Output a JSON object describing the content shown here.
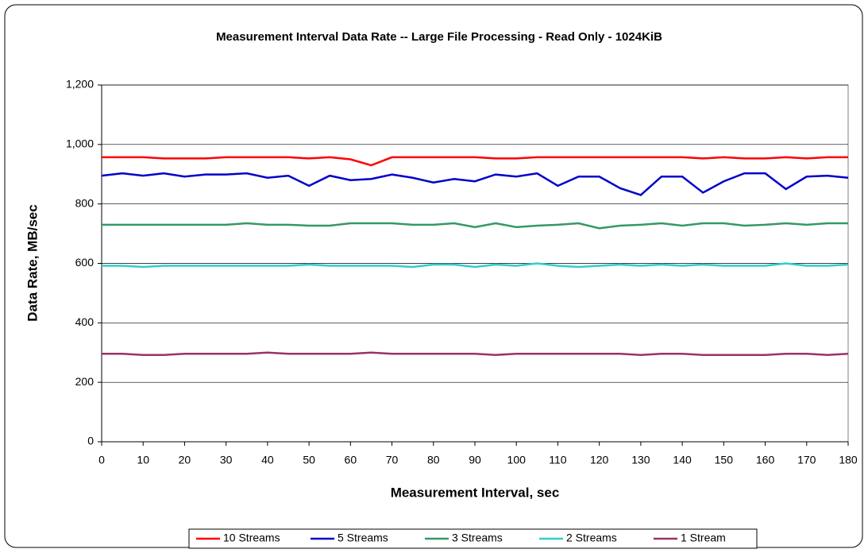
{
  "chart_data": {
    "type": "line",
    "title": "Measurement Interval Data Rate -- Large File Processing - Read Only - 1024KiB",
    "x_label": "Measurement Interval, sec",
    "y_label": "Data Rate, MB/sec",
    "x": [
      0,
      5,
      10,
      15,
      20,
      25,
      30,
      35,
      40,
      45,
      50,
      55,
      60,
      65,
      70,
      75,
      80,
      85,
      90,
      95,
      100,
      105,
      110,
      115,
      120,
      125,
      130,
      135,
      140,
      145,
      150,
      155,
      160,
      165,
      170,
      175,
      180
    ],
    "xlim": [
      0,
      180
    ],
    "xticks": [
      0,
      10,
      20,
      30,
      40,
      50,
      60,
      70,
      80,
      90,
      100,
      110,
      120,
      130,
      140,
      150,
      160,
      170,
      180
    ],
    "ylim": [
      0,
      1200
    ],
    "yticks": [
      0,
      200,
      400,
      600,
      800,
      {
        "value": 1000,
        "label": "1,000"
      },
      {
        "value": 1200,
        "label": "1,200"
      }
    ],
    "grid": true,
    "legend": "bottom",
    "series": [
      {
        "name": "10 Streams",
        "color": "#ff0000",
        "values": [
          957,
          957,
          957,
          953,
          953,
          953,
          957,
          957,
          957,
          957,
          953,
          957,
          950,
          930,
          957,
          957,
          957,
          957,
          957,
          953,
          953,
          957,
          957,
          957,
          957,
          957,
          957,
          957,
          957,
          953,
          957,
          953,
          953,
          957,
          953,
          957,
          957
        ]
      },
      {
        "name": "5 Streams",
        "color": "#0000cc",
        "values": [
          895,
          903,
          895,
          903,
          892,
          899,
          899,
          903,
          888,
          895,
          861,
          895,
          880,
          884,
          899,
          888,
          872,
          884,
          876,
          899,
          892,
          903,
          861,
          892,
          892,
          853,
          830,
          892,
          892,
          838,
          876,
          903,
          903,
          850,
          892,
          895,
          888
        ]
      },
      {
        "name": "3 Streams",
        "color": "#339966",
        "values": [
          730,
          730,
          730,
          730,
          730,
          730,
          730,
          735,
          730,
          730,
          727,
          727,
          735,
          735,
          735,
          730,
          730,
          735,
          722,
          735,
          722,
          727,
          730,
          735,
          718,
          727,
          730,
          735,
          727,
          735,
          735,
          727,
          730,
          735,
          730,
          735,
          735
        ]
      },
      {
        "name": "2 Streams",
        "color": "#33cccc",
        "values": [
          592,
          592,
          588,
          592,
          592,
          592,
          592,
          592,
          592,
          592,
          596,
          592,
          592,
          592,
          592,
          588,
          596,
          596,
          588,
          596,
          592,
          600,
          592,
          588,
          592,
          596,
          592,
          596,
          592,
          596,
          592,
          592,
          592,
          600,
          592,
          592,
          596
        ]
      },
      {
        "name": "1 Stream",
        "color": "#993366",
        "values": [
          296,
          296,
          292,
          292,
          296,
          296,
          296,
          296,
          300,
          296,
          296,
          296,
          296,
          300,
          296,
          296,
          296,
          296,
          296,
          292,
          296,
          296,
          296,
          296,
          296,
          296,
          292,
          296,
          296,
          292,
          292,
          292,
          292,
          296,
          296,
          292,
          296
        ]
      }
    ]
  }
}
